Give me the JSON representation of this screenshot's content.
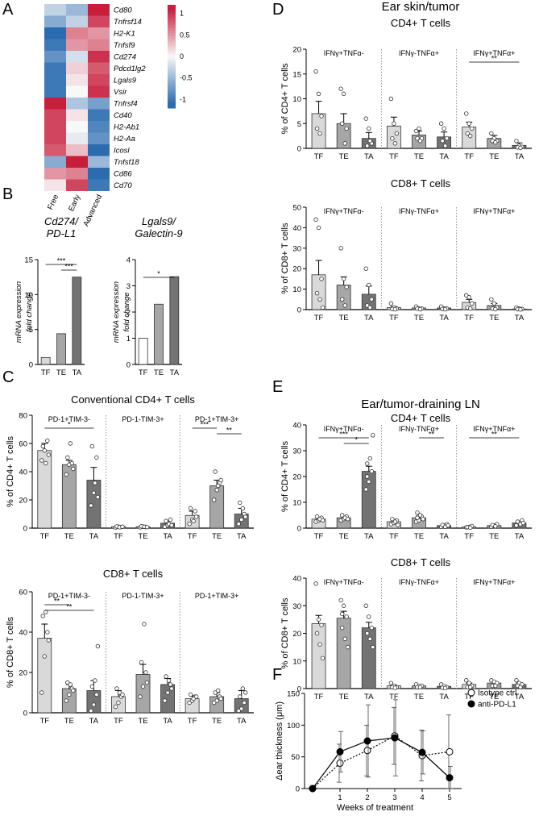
{
  "panel_labels": {
    "A": "A",
    "B": "B",
    "C": "C",
    "D": "D",
    "E": "E",
    "F": "F"
  },
  "chart_data": [
    {
      "id": "A",
      "type": "heatmap",
      "columns": [
        "Free",
        "Early",
        "Advanced"
      ],
      "rows": [
        "Cd80",
        "Tnfrsf14",
        "H2-K1",
        "Tnfsf9",
        "Cd274",
        "Pdcd1lg2",
        "Lgals9",
        "Vsir",
        "Tnfrsf4",
        "Cd40",
        "H2-Ab1",
        "H2-Aa",
        "Icosl",
        "Tnfsf18",
        "Cd86",
        "Cd70"
      ],
      "values": [
        [
          -0.3,
          -0.5,
          1.1
        ],
        [
          -0.6,
          -0.3,
          0.9
        ],
        [
          -1.1,
          0.6,
          0.5
        ],
        [
          -1.0,
          0.5,
          0.6
        ],
        [
          -0.8,
          -0.2,
          1.0
        ],
        [
          -1.0,
          0.2,
          0.8
        ],
        [
          -1.0,
          0.1,
          0.9
        ],
        [
          -1.0,
          0.0,
          1.0
        ],
        [
          1.1,
          -0.4,
          -0.7
        ],
        [
          0.9,
          0.1,
          -1.0
        ],
        [
          0.9,
          0.0,
          -0.9
        ],
        [
          0.9,
          -0.1,
          -0.8
        ],
        [
          0.8,
          0.3,
          -1.1
        ],
        [
          -0.6,
          1.1,
          -0.5
        ],
        [
          0.5,
          0.6,
          -1.1
        ],
        [
          0.1,
          0.9,
          -1.0
        ]
      ],
      "colorbar": {
        "ticks": [
          "1",
          "0.5",
          "0",
          "-0.5",
          "-1"
        ],
        "min": -1.2,
        "max": 1.2
      }
    },
    {
      "id": "B1",
      "type": "bar",
      "title": [
        "Cd274/",
        "PD-L1"
      ],
      "ylabel": [
        "mRNA expression",
        "fold change"
      ],
      "categories": [
        "TF",
        "TE",
        "TA"
      ],
      "values": [
        1,
        4.4,
        12.5
      ],
      "ylim": [
        0,
        15
      ],
      "yticks": [
        "0",
        "5",
        "10",
        "15"
      ],
      "colors": [
        "#d9d9d9",
        "#a6a6a6",
        "#737373"
      ],
      "significance": [
        {
          "from": 0,
          "to": 2,
          "label": "***"
        },
        {
          "from": 1,
          "to": 2,
          "label": "***"
        }
      ]
    },
    {
      "id": "B2",
      "type": "bar",
      "title": [
        "Lgals9/",
        "Galectin-9"
      ],
      "ylabel": [
        "mRNA expression",
        "fold change"
      ],
      "categories": [
        "TF",
        "TE",
        "TA"
      ],
      "values": [
        1,
        2.3,
        3.35
      ],
      "ylim": [
        0,
        4
      ],
      "yticks": [
        "0",
        "1",
        "2",
        "3",
        "4"
      ],
      "colors": [
        "#ffffff",
        "#a6a6a6",
        "#737373"
      ],
      "significance": [
        {
          "from": 0,
          "to": 2,
          "label": "*"
        }
      ]
    },
    {
      "id": "C1",
      "type": "bar",
      "title": "Conventional CD4+ T cells",
      "ylabel": "% of CD4+ T cells",
      "ylim": [
        0,
        80
      ],
      "yticks": [
        "0",
        "20",
        "40",
        "60",
        "80"
      ],
      "categories": [
        "TF",
        "TE",
        "TA"
      ],
      "groups": [
        {
          "name": "PD-1+TIM-3-",
          "values": [
            55,
            45,
            34
          ],
          "errors": [
            5,
            3,
            9
          ],
          "points": [
            [
              48,
              55,
              62,
              58,
              46,
              52
            ],
            [
              38,
              45,
              46,
              50,
              60,
              42
            ],
            [
              16,
              25,
              50,
              58,
              32,
              22
            ]
          ],
          "significance": [
            {
              "from": 0,
              "to": 2,
              "label": "*"
            }
          ]
        },
        {
          "name": "PD-1-TIM-3+",
          "values": [
            1,
            1,
            3.5
          ],
          "errors": [
            0.3,
            0.3,
            1.5
          ],
          "points": [
            [
              0.5,
              1,
              0.8,
              1.2,
              0.6,
              1
            ],
            [
              0.6,
              1,
              0.8,
              1.3,
              1,
              0.7
            ],
            [
              1,
              2,
              6,
              5,
              3,
              2
            ]
          ],
          "significance": []
        },
        {
          "name": "PD-1+TIM-3+",
          "values": [
            9,
            30,
            10
          ],
          "errors": [
            3,
            4,
            4
          ],
          "points": [
            [
              3,
              6,
              12,
              14,
              5,
              8
            ],
            [
              20,
              27,
              32,
              40,
              30,
              34
            ],
            [
              3,
              6,
              10,
              18,
              14,
              8
            ]
          ],
          "significance": [
            {
              "from": 0,
              "to": 1,
              "label": "***"
            },
            {
              "from": 1,
              "to": 2,
              "label": "**"
            }
          ]
        }
      ]
    },
    {
      "id": "C2",
      "type": "bar",
      "title": "CD8+ T cells",
      "ylabel": "% of CD8+ T cells",
      "ylim": [
        0,
        60
      ],
      "yticks": [
        "0",
        "20",
        "40",
        "60"
      ],
      "categories": [
        "TF",
        "TE",
        "TA"
      ],
      "groups": [
        {
          "name": "PD-1+TIM-3-",
          "values": [
            37,
            12,
            11
          ],
          "errors": [
            7,
            2,
            5
          ],
          "points": [
            [
              10,
              28,
              40,
              48,
              50,
              36
            ],
            [
              6,
              9,
              12,
              15,
              14,
              11
            ],
            [
              1,
              4,
              9,
              13,
              16,
              33
            ]
          ],
          "significance": [
            {
              "from": 0,
              "to": 1,
              "label": "**"
            },
            {
              "from": 0,
              "to": 2,
              "label": "**"
            }
          ]
        },
        {
          "name": "PD-1-TIM-3+",
          "values": [
            8,
            19,
            14
          ],
          "errors": [
            3,
            5,
            3
          ],
          "points": [
            [
              3,
              5,
              8,
              12,
              10,
              9
            ],
            [
              8,
              13,
              20,
              25,
              44,
              15
            ],
            [
              6,
              10,
              14,
              18,
              16,
              12
            ]
          ],
          "significance": []
        },
        {
          "name": "PD-1+TIM-3+",
          "values": [
            7,
            8,
            7
          ],
          "errors": [
            1.5,
            2,
            4
          ],
          "points": [
            [
              5,
              6,
              8,
              9,
              7,
              8
            ],
            [
              5,
              6,
              8,
              10,
              11,
              7
            ],
            [
              1,
              2,
              5,
              8,
              12,
              10
            ]
          ],
          "significance": []
        }
      ]
    },
    {
      "id": "D1",
      "type": "bar",
      "heading": "Ear skin/tumor",
      "title": "CD4+ T cells",
      "ylabel": "% of CD4+ T cells",
      "ylim": [
        0,
        20
      ],
      "yticks": [
        "0",
        "5",
        "10",
        "15",
        "20"
      ],
      "categories": [
        "TF",
        "TE",
        "TA"
      ],
      "groups": [
        {
          "name": "IFNγ+TNFα-",
          "values": [
            7,
            5,
            2
          ],
          "errors": [
            2.5,
            2,
            1.2
          ],
          "points": [
            [
              15.5,
              11,
              6.5,
              4,
              3
            ],
            [
              12,
              11,
              4,
              5,
              1
            ],
            [
              6,
              4,
              1,
              0.5,
              1.5
            ]
          ],
          "significance": []
        },
        {
          "name": "IFNγ-TNFα+",
          "values": [
            4.5,
            2.7,
            2.3
          ],
          "errors": [
            1.8,
            0.8,
            1
          ],
          "points": [
            [
              10,
              5,
              3,
              2,
              1
            ],
            [
              3.5,
              4,
              2,
              2,
              1.5
            ],
            [
              5,
              4,
              2,
              1.5,
              0.5
            ]
          ],
          "significance": []
        },
        {
          "name": "IFNγ+TNFα+",
          "values": [
            4.3,
            2,
            0.6
          ],
          "errors": [
            1,
            0.6,
            0.5
          ],
          "points": [
            [
              7,
              5,
              4,
              3,
              2.5
            ],
            [
              3,
              2,
              1.5,
              1.5,
              1.2
            ],
            [
              1.5,
              0.5,
              0.3,
              0.2,
              0.1
            ]
          ],
          "significance": [
            {
              "from": 0,
              "to": 2,
              "label": "**"
            }
          ]
        }
      ]
    },
    {
      "id": "D2",
      "type": "bar",
      "title": "CD8+ T cells",
      "ylabel": "% of CD8+ T cells",
      "ylim": [
        0,
        50
      ],
      "yticks": [
        "0",
        "10",
        "20",
        "30",
        "40",
        "50"
      ],
      "categories": [
        "TF",
        "TE",
        "TA"
      ],
      "groups": [
        {
          "name": "IFNγ+TNFα-",
          "values": [
            17,
            12,
            7.5
          ],
          "errors": [
            7,
            4,
            4
          ],
          "points": [
            [
              44,
              40,
              15,
              8,
              5,
              1
            ],
            [
              30,
              15,
              11,
              5,
              2
            ],
            [
              20,
              12,
              5,
              2,
              1
            ]
          ],
          "significance": []
        },
        {
          "name": "IFNγ-TNFα+",
          "values": [
            1,
            0.8,
            0.8
          ],
          "errors": [
            0.5,
            0.3,
            0.3
          ],
          "points": [
            [
              3,
              1,
              0.5,
              0.3,
              0.2
            ],
            [
              1.5,
              0.5,
              0.5,
              0.5,
              0.2
            ],
            [
              1.5,
              0.5,
              0.5,
              0.3,
              0.2
            ]
          ],
          "significance": []
        },
        {
          "name": "IFNγ+TNFα+",
          "values": [
            3.5,
            2,
            0.3
          ],
          "errors": [
            1.5,
            1,
            0.2
          ],
          "points": [
            [
              7,
              6,
              3,
              1,
              0.5
            ],
            [
              5,
              3,
              1,
              0.5,
              0.2
            ],
            [
              1,
              0.5,
              0.3,
              0.2,
              0.1
            ]
          ],
          "significance": []
        }
      ]
    },
    {
      "id": "E1",
      "type": "bar",
      "heading": "Ear/tumor-draining LN",
      "title": "CD4+ T cells",
      "ylabel": "% of CD4+ T cells",
      "ylim": [
        0,
        40
      ],
      "yticks": [
        "0",
        "10",
        "20",
        "30",
        "40"
      ],
      "categories": [
        "TF",
        "TE",
        "TA"
      ],
      "groups": [
        {
          "name": "IFNγ+TNFα-",
          "values": [
            3.5,
            4,
            22
          ],
          "errors": [
            0.5,
            0.5,
            2
          ],
          "points": [
            [
              2.5,
              3,
              4,
              4.5,
              3.5,
              3
            ],
            [
              3,
              3.5,
              4.5,
              5,
              4,
              3.5
            ],
            [
              15,
              18,
              22,
              25,
              27,
              36,
              20
            ]
          ],
          "significance": [
            {
              "from": 0,
              "to": 2,
              "label": "***"
            },
            {
              "from": 1,
              "to": 2,
              "label": "*"
            }
          ]
        },
        {
          "name": "IFNγ-TNFα+",
          "values": [
            2.5,
            4,
            1
          ],
          "errors": [
            0.5,
            0.7,
            0.3
          ],
          "points": [
            [
              1.5,
              2,
              3,
              3.5,
              2.5,
              1.2
            ],
            [
              2.5,
              3,
              4.5,
              6,
              5,
              3.5,
              4
            ],
            [
              0.5,
              1,
              1.5,
              1.2,
              0.5,
              1
            ]
          ],
          "significance": [
            {
              "from": 1,
              "to": 2,
              "label": "**"
            }
          ]
        },
        {
          "name": "IFNγ+TNFα+",
          "values": [
            0.5,
            1,
            2
          ],
          "errors": [
            0.2,
            0.2,
            0.5
          ],
          "points": [
            [
              0.3,
              0.5,
              0.8,
              0.4,
              0.2
            ],
            [
              0.5,
              1,
              1.5,
              1.2,
              0.7
            ],
            [
              1,
              2,
              3,
              2.5,
              1.5,
              2
            ]
          ],
          "significance": [
            {
              "from": 0,
              "to": 2,
              "label": "**"
            }
          ]
        }
      ]
    },
    {
      "id": "E2",
      "type": "bar",
      "title": "CD8+ T cells",
      "ylabel": "% of CD8+ T cells",
      "ylim": [
        0,
        40
      ],
      "yticks": [
        "0",
        "10",
        "20",
        "30",
        "40"
      ],
      "categories": [
        "TF",
        "TE",
        "TA"
      ],
      "groups": [
        {
          "name": "IFNγ+TNFα-",
          "values": [
            23.5,
            25.5,
            22
          ],
          "errors": [
            3,
            2.5,
            2
          ],
          "points": [
            [
              38,
              25,
              23,
              20,
              16,
              11
            ],
            [
              32,
              30,
              26,
              22,
              18,
              15,
              27
            ],
            [
              30,
              26,
              22,
              20,
              18,
              15
            ]
          ],
          "significance": []
        },
        {
          "name": "IFNγ-TNFα+",
          "values": [
            1,
            1,
            0.8
          ],
          "errors": [
            0.3,
            0.3,
            0.3
          ],
          "points": [
            [
              2,
              1,
              0.5,
              0.5,
              0.3
            ],
            [
              1.5,
              1,
              1,
              0.5,
              0.5
            ],
            [
              1.5,
              1,
              0.5,
              0.3,
              0.2
            ]
          ],
          "significance": []
        },
        {
          "name": "IFNγ+TNFα+",
          "values": [
            1.5,
            2,
            1.5
          ],
          "errors": [
            0.5,
            0.5,
            0.5
          ],
          "points": [
            [
              3,
              2,
              1,
              0.5,
              0.5
            ],
            [
              3,
              2.5,
              2,
              1,
              1
            ],
            [
              3,
              2,
              1.5,
              1,
              0.5
            ]
          ],
          "significance": []
        }
      ]
    },
    {
      "id": "F",
      "type": "line",
      "xlabel": "Weeks of treatment",
      "ylabel": "Δear thickness (μm)",
      "x": [
        0,
        1,
        2,
        3,
        4,
        5
      ],
      "xticks": [
        "0",
        "1",
        "2",
        "3",
        "4",
        "5"
      ],
      "ylim": [
        0,
        150
      ],
      "yticks": [
        "0",
        "50",
        "100",
        "150"
      ],
      "legend_position": "top-right",
      "series": [
        {
          "name": "Isotype ctrl",
          "values": [
            0,
            40,
            60,
            83,
            52,
            58
          ],
          "errors": [
            0,
            30,
            40,
            45,
            40,
            58
          ],
          "marker": "open",
          "dashed": true
        },
        {
          "name": "anti-PD-L1",
          "values": [
            0,
            58,
            75,
            80,
            57,
            17
          ],
          "errors": [
            0,
            32,
            57,
            60,
            34,
            18
          ],
          "marker": "filled",
          "dashed": false
        }
      ]
    }
  ]
}
